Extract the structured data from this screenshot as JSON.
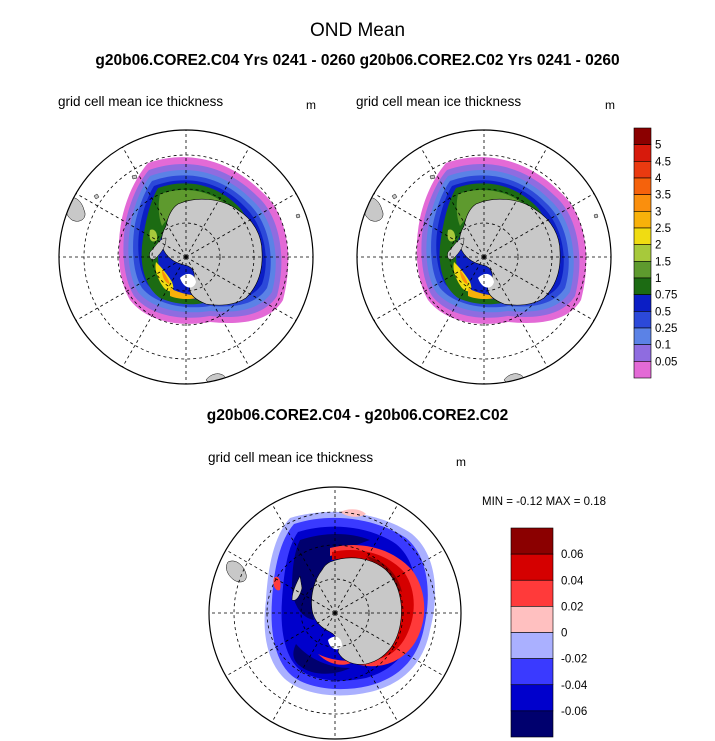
{
  "title": "OND Mean",
  "subtitle": "g20b06.CORE2.C04  Yrs 0241 - 0260 g20b06.CORE2.C02  Yrs 0241 - 0260",
  "panels": [
    {
      "label": "grid cell mean ice thickness",
      "unit": "m"
    },
    {
      "label": "grid cell mean ice thickness",
      "unit": "m"
    }
  ],
  "diff": {
    "title": "g20b06.CORE2.C04 - g20b06.CORE2.C02",
    "label": "grid cell mean ice thickness",
    "unit": "m",
    "stats": "MIN =  -0.12 MAX =   0.18"
  },
  "thickness_colorbar": {
    "labels": [
      "5",
      "4.5",
      "4",
      "3.5",
      "3",
      "2.5",
      "2",
      "1.5",
      "1",
      "0.75",
      "0.5",
      "0.25",
      "0.1",
      "0.05"
    ],
    "colors": [
      "#8b0000",
      "#d71a0c",
      "#ea3a10",
      "#f5620c",
      "#fa8f0d",
      "#f8b10a",
      "#f0dc12",
      "#a7c93b",
      "#5e9a2e",
      "#1c6b13",
      "#0b1ec5",
      "#2c49d9",
      "#5b82e6",
      "#8f6ce0",
      "#e36ad6"
    ]
  },
  "diff_colorbar": {
    "labels": [
      "0.06",
      "0.04",
      "0.02",
      "0",
      "-0.02",
      "-0.04",
      "-0.06"
    ],
    "colors": [
      "#8b0000",
      "#d50000",
      "#ff3a3a",
      "#ffc0c0",
      "#aab0ff",
      "#3a3aff",
      "#0000cc",
      "#00006e"
    ]
  },
  "colors": {
    "land": "#c8c8c8",
    "ocean": "#ffffff"
  }
}
